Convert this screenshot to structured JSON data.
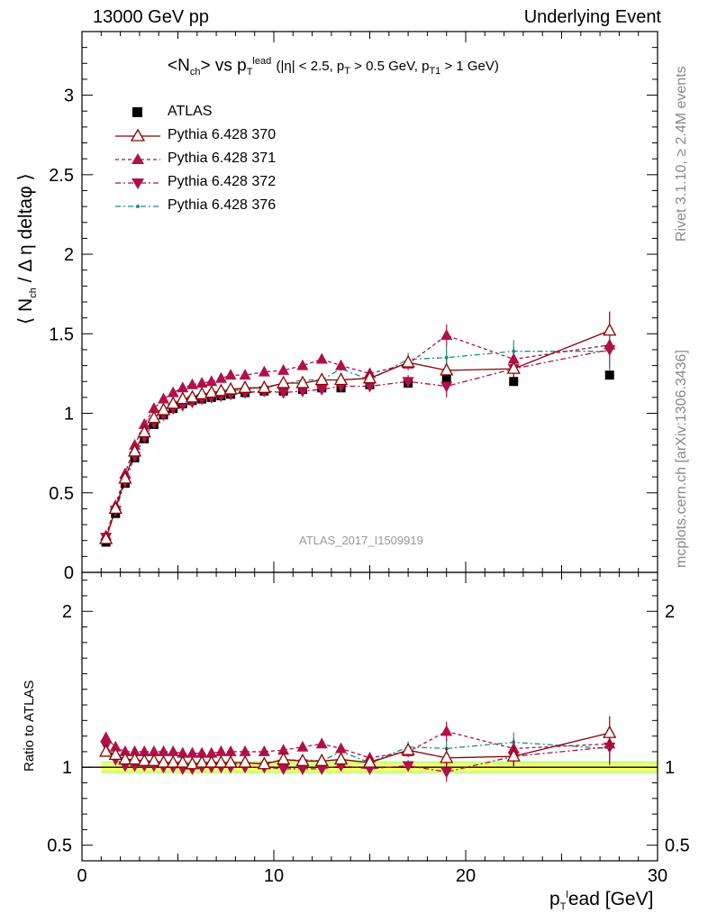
{
  "header": {
    "left": "13000 GeV pp",
    "right": "Underlying Event"
  },
  "side_labels": {
    "rivet": "Rivet 3.1.10, ≥ 2.4M events",
    "mcplots": "mcplots.cern.ch [arXiv:1306.3436]"
  },
  "colors": {
    "atlas": "#000000",
    "p370": "#8b0000",
    "p371": "#b0104a",
    "p372": "#b0104a",
    "p376": "#1a9080",
    "band_inner": "#ffff66",
    "band_outer": "#ccff88"
  },
  "chart_data": [
    {
      "type": "scatter",
      "title": "<N_ch> vs p_T^lead",
      "title_parts": {
        "main_a": "<N",
        "main_sub": "ch",
        "main_b": "> vs p",
        "main_sub2": "T",
        "main_sup": "lead",
        "cuts_a": "(|η| < 2.5, p",
        "cuts_sub1": "T",
        "cuts_b": " > 0.5 GeV, p",
        "cuts_sub2": "T1",
        "cuts_c": " > 1 GeV)"
      },
      "ylabel": "⟨ N_ch / Δ η deltaφ ⟩",
      "ylabel_parts": {
        "a": "⟨ N",
        "sub": "ch",
        "b": " / Δ η deltaφ ⟩"
      },
      "watermark": "ATLAS_2017_I1509919",
      "xlim": [
        0,
        30
      ],
      "ylim": [
        0,
        3.4
      ],
      "yticks": [
        0,
        0.5,
        1,
        1.5,
        2,
        2.5,
        3
      ],
      "ytick_labels": [
        "0",
        "0.5",
        "1",
        "1.5",
        "2",
        "2.5",
        "3"
      ],
      "grid": false,
      "legend_position": "top-left",
      "x": [
        1.25,
        1.75,
        2.25,
        2.75,
        3.25,
        3.75,
        4.25,
        4.75,
        5.25,
        5.75,
        6.25,
        6.75,
        7.25,
        7.75,
        8.5,
        9.5,
        10.5,
        11.5,
        12.5,
        13.5,
        15.0,
        17.0,
        19.0,
        22.5,
        27.5
      ],
      "series": [
        {
          "name": "ATLAS",
          "key": "atlas",
          "marker": "square",
          "values": [
            0.19,
            0.37,
            0.56,
            0.72,
            0.84,
            0.93,
            0.99,
            1.03,
            1.06,
            1.08,
            1.09,
            1.1,
            1.11,
            1.12,
            1.13,
            1.14,
            1.14,
            1.15,
            1.16,
            1.16,
            1.18,
            1.19,
            1.21,
            1.2,
            1.24
          ]
        },
        {
          "name": "Pythia 6.428 370",
          "key": "p370",
          "marker": "triangle-up-open",
          "line": "solid",
          "values": [
            0.21,
            0.4,
            0.59,
            0.76,
            0.88,
            0.97,
            1.02,
            1.06,
            1.09,
            1.1,
            1.12,
            1.13,
            1.14,
            1.15,
            1.16,
            1.16,
            1.19,
            1.19,
            1.21,
            1.21,
            1.22,
            1.32,
            1.27,
            1.28,
            1.52
          ]
        },
        {
          "name": "Pythia 6.428 371",
          "key": "p371",
          "marker": "triangle-up",
          "line": "dashed",
          "values": [
            0.23,
            0.42,
            0.62,
            0.8,
            0.93,
            1.03,
            1.09,
            1.13,
            1.16,
            1.18,
            1.19,
            1.2,
            1.22,
            1.24,
            1.24,
            1.26,
            1.27,
            1.3,
            1.34,
            1.3,
            1.25,
            1.31,
            1.49,
            1.34,
            1.43
          ]
        },
        {
          "name": "Pythia 6.428 372",
          "key": "p372",
          "marker": "triangle-down",
          "line": "dashdot",
          "values": [
            0.22,
            0.39,
            0.57,
            0.73,
            0.85,
            0.94,
            0.99,
            1.03,
            1.05,
            1.07,
            1.09,
            1.1,
            1.11,
            1.12,
            1.13,
            1.14,
            1.13,
            1.14,
            1.15,
            1.17,
            1.17,
            1.2,
            1.17,
            1.28,
            1.4
          ]
        },
        {
          "name": "Pythia 6.428 376",
          "key": "p376",
          "marker": "dot",
          "line": "dashdot",
          "values": [
            0.22,
            0.4,
            0.59,
            0.75,
            0.87,
            0.96,
            1.01,
            1.05,
            1.08,
            1.1,
            1.11,
            1.12,
            1.13,
            1.14,
            1.15,
            1.17,
            1.18,
            1.21,
            1.21,
            1.28,
            1.21,
            1.34,
            1.35,
            1.39,
            1.39
          ]
        }
      ]
    },
    {
      "type": "line",
      "ylabel": "Ratio to ATLAS",
      "xlabel": "p_T^lead [GeV]",
      "xlabel_parts": {
        "a": "p",
        "sub": "T",
        "sup": "l",
        "b": "ead [GeV]"
      },
      "xlim": [
        0,
        30
      ],
      "xticks": [
        0,
        10,
        20,
        30
      ],
      "xtick_labels": [
        "0",
        "10",
        "20",
        "30"
      ],
      "ylim": [
        0.4,
        2.25
      ],
      "yticks": [
        0.5,
        1,
        2
      ],
      "ytick_labels": [
        "0.5",
        "1",
        "2"
      ],
      "x": [
        1.25,
        1.75,
        2.25,
        2.75,
        3.25,
        3.75,
        4.25,
        4.75,
        5.25,
        5.75,
        6.25,
        6.75,
        7.25,
        7.75,
        8.5,
        9.5,
        10.5,
        11.5,
        12.5,
        13.5,
        15.0,
        17.0,
        19.0,
        22.5,
        27.5
      ],
      "series": [
        {
          "name": "Pythia 6.428 370",
          "key": "p370",
          "values": [
            1.1,
            1.08,
            1.05,
            1.05,
            1.04,
            1.04,
            1.03,
            1.03,
            1.03,
            1.02,
            1.03,
            1.03,
            1.03,
            1.03,
            1.03,
            1.02,
            1.05,
            1.04,
            1.04,
            1.05,
            1.03,
            1.11,
            1.06,
            1.07,
            1.22
          ]
        },
        {
          "name": "Pythia 6.428 371",
          "key": "p371",
          "values": [
            1.19,
            1.13,
            1.1,
            1.1,
            1.1,
            1.1,
            1.1,
            1.1,
            1.09,
            1.09,
            1.09,
            1.09,
            1.1,
            1.1,
            1.1,
            1.1,
            1.11,
            1.13,
            1.15,
            1.12,
            1.06,
            1.1,
            1.23,
            1.12,
            1.15
          ]
        },
        {
          "name": "Pythia 6.428 372",
          "key": "p372",
          "values": [
            1.14,
            1.05,
            1.01,
            1.01,
            1.01,
            1.01,
            1.0,
            1.0,
            0.99,
            0.99,
            1.0,
            1.0,
            1.0,
            1.0,
            1.0,
            1.0,
            0.99,
            0.99,
            0.99,
            1.01,
            0.99,
            1.01,
            0.97,
            1.07,
            1.13
          ]
        },
        {
          "name": "Pythia 6.428 376",
          "key": "p376",
          "values": [
            1.13,
            1.07,
            1.05,
            1.04,
            1.03,
            1.03,
            1.02,
            1.02,
            1.02,
            1.02,
            1.02,
            1.02,
            1.02,
            1.02,
            1.02,
            1.03,
            1.04,
            1.05,
            1.04,
            1.1,
            1.03,
            1.13,
            1.12,
            1.16,
            1.12
          ]
        }
      ],
      "band": {
        "inner": 0.02,
        "outer": 0.04
      }
    }
  ]
}
